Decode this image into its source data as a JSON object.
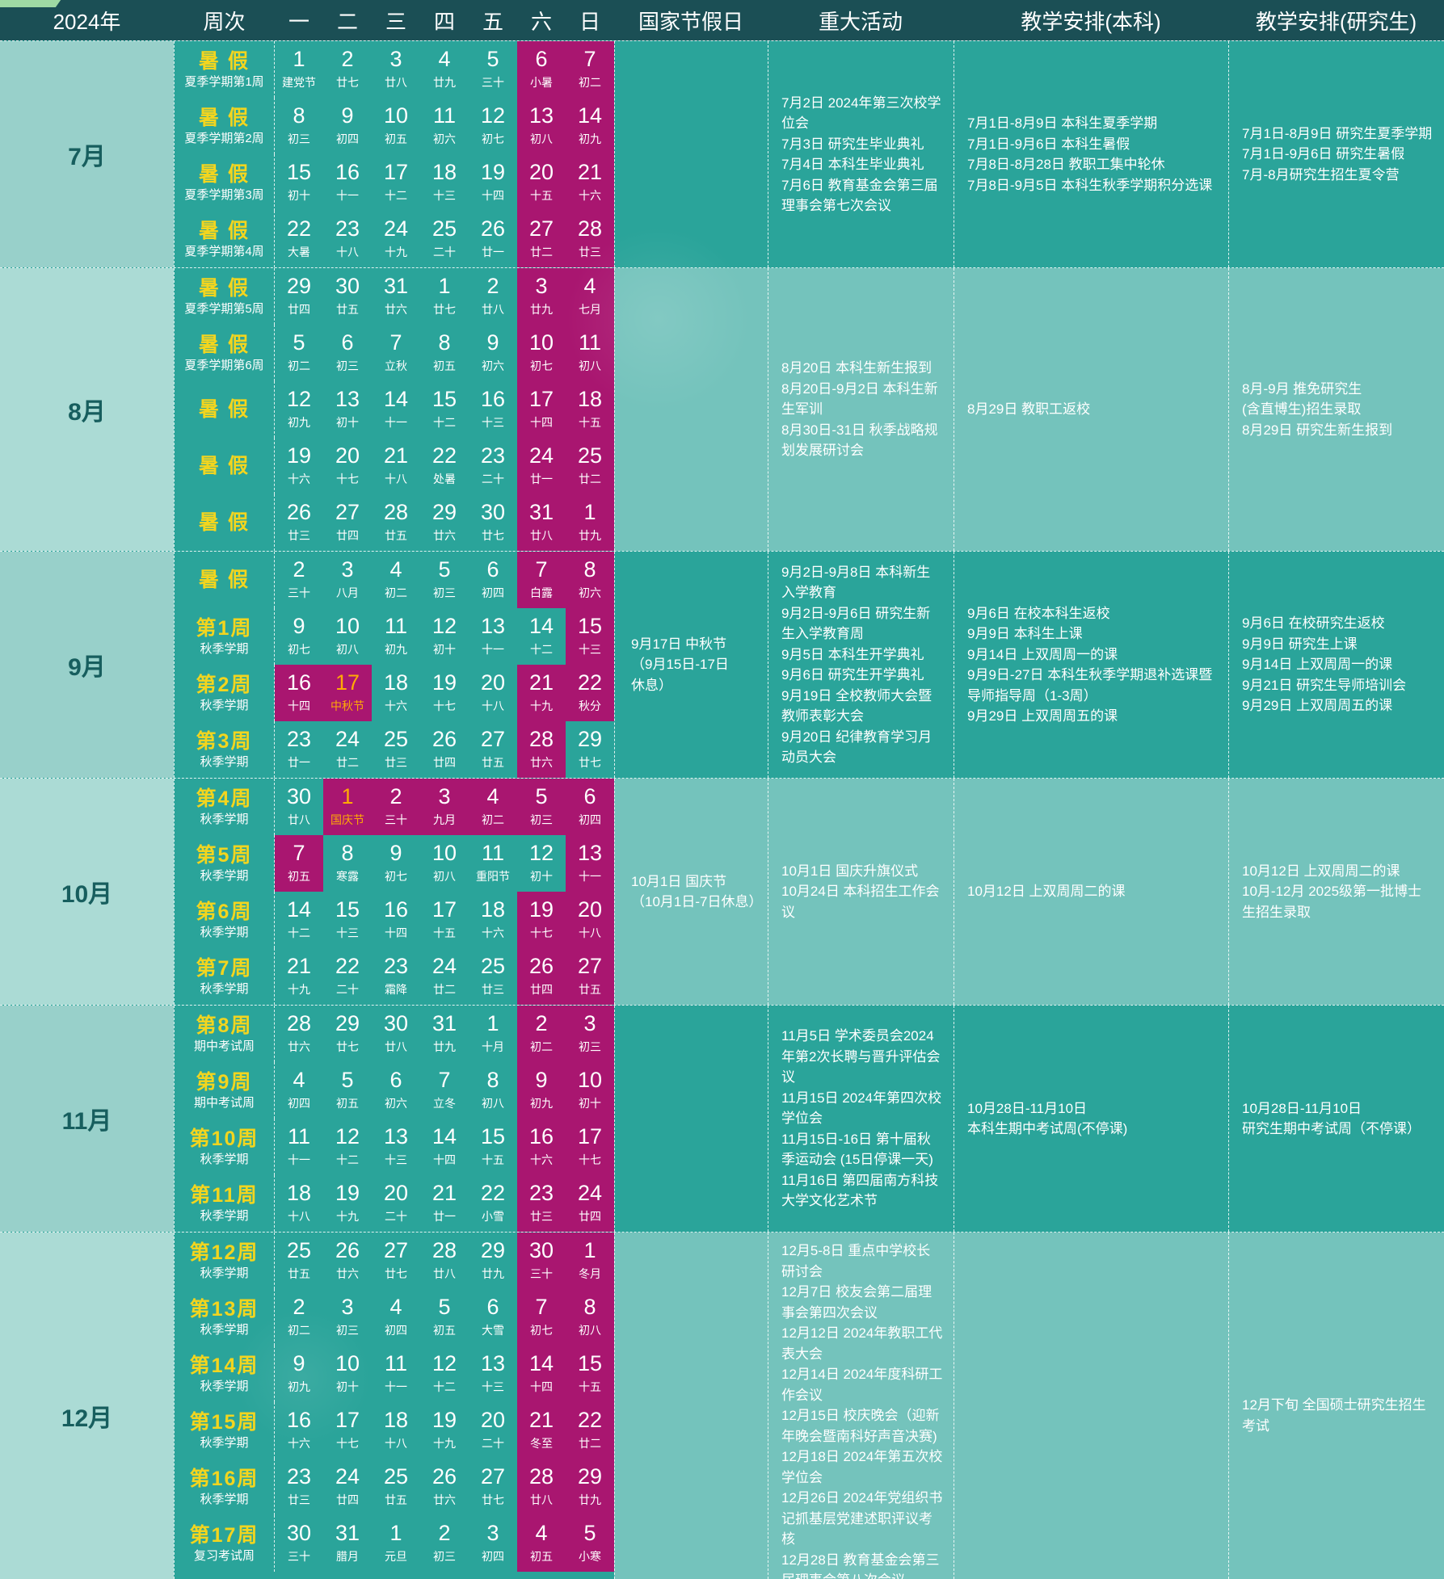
{
  "header": {
    "year": "2024年",
    "week_col": "周次",
    "days": [
      "一",
      "二",
      "三",
      "四",
      "五",
      "六",
      "日"
    ],
    "holiday_col": "国家节假日",
    "events_col": "重大活动",
    "ug_col": "教学安排(本科)",
    "pg_col": "教学安排(研究生)"
  },
  "colors": {
    "teal": "#2aa49a",
    "teal_light": "#74c3bc",
    "magenta": "#a91670",
    "header_bg": "#1b4f55",
    "week_label_yellow": "#f2d51f",
    "festival_orange": "#ffaa05",
    "month_col_dark": "#98d0ca",
    "month_col_light": "#abdbd5"
  },
  "months": [
    {
      "name": "7月",
      "tone": "dark",
      "holiday": "",
      "events": "7月2日  2024年第三次校学位会\n7月3日  研究生毕业典礼\n7月4日  本科生毕业典礼\n7月6日  教育基金会第三届理事会第七次会议",
      "ug": "7月1日-8月9日  本科生夏季学期\n7月1日-9月6日  本科生暑假\n7月8日-8月28日  教职工集中轮休\n7月8日-9月5日  本科生秋季学期积分选课",
      "pg": "7月1日-8月9日 研究生夏季学期\n7月1日-9月6日 研究生暑假\n7月-8月研究生招生夏令营",
      "weeks": [
        {
          "label": "暑 假",
          "sub": "夏季学期第1周",
          "days": [
            [
              "1",
              "建党节"
            ],
            [
              "2",
              "廿七"
            ],
            [
              "3",
              "廿八"
            ],
            [
              "4",
              "廿九"
            ],
            [
              "5",
              "三十"
            ],
            [
              "6",
              "小暑"
            ],
            [
              "7",
              "初二"
            ]
          ]
        },
        {
          "label": "暑 假",
          "sub": "夏季学期第2周",
          "days": [
            [
              "8",
              "初三"
            ],
            [
              "9",
              "初四"
            ],
            [
              "10",
              "初五"
            ],
            [
              "11",
              "初六"
            ],
            [
              "12",
              "初七"
            ],
            [
              "13",
              "初八"
            ],
            [
              "14",
              "初九"
            ]
          ]
        },
        {
          "label": "暑 假",
          "sub": "夏季学期第3周",
          "days": [
            [
              "15",
              "初十"
            ],
            [
              "16",
              "十一"
            ],
            [
              "17",
              "十二"
            ],
            [
              "18",
              "十三"
            ],
            [
              "19",
              "十四"
            ],
            [
              "20",
              "十五"
            ],
            [
              "21",
              "十六"
            ]
          ]
        },
        {
          "label": "暑 假",
          "sub": "夏季学期第4周",
          "days": [
            [
              "22",
              "大暑"
            ],
            [
              "23",
              "十八"
            ],
            [
              "24",
              "十九"
            ],
            [
              "25",
              "二十"
            ],
            [
              "26",
              "廿一"
            ],
            [
              "27",
              "廿二"
            ],
            [
              "28",
              "廿三"
            ]
          ]
        }
      ]
    },
    {
      "name": "8月",
      "tone": "light",
      "holiday": "",
      "events": "8月20日  本科生新生报到\n8月20日-9月2日  本科生新生军训\n8月30日-31日  秋季战略规划发展研讨会",
      "ug": "8月29日  教职工返校",
      "pg": "8月-9月  推免研究生\n(含直博生)招生录取\n8月29日  研究生新生报到",
      "weeks": [
        {
          "label": "暑 假",
          "sub": "夏季学期第5周",
          "days": [
            [
              "29",
              "廿四"
            ],
            [
              "30",
              "廿五"
            ],
            [
              "31",
              "廿六"
            ],
            [
              "1",
              "廿七"
            ],
            [
              "2",
              "廿八"
            ],
            [
              "3",
              "廿九"
            ],
            [
              "4",
              "七月"
            ]
          ]
        },
        {
          "label": "暑 假",
          "sub": "夏季学期第6周",
          "days": [
            [
              "5",
              "初二"
            ],
            [
              "6",
              "初三"
            ],
            [
              "7",
              "立秋"
            ],
            [
              "8",
              "初五"
            ],
            [
              "9",
              "初六"
            ],
            [
              "10",
              "初七"
            ],
            [
              "11",
              "初八"
            ]
          ]
        },
        {
          "label": "暑 假",
          "sub": "",
          "days": [
            [
              "12",
              "初九"
            ],
            [
              "13",
              "初十"
            ],
            [
              "14",
              "十一"
            ],
            [
              "15",
              "十二"
            ],
            [
              "16",
              "十三"
            ],
            [
              "17",
              "十四"
            ],
            [
              "18",
              "十五"
            ]
          ]
        },
        {
          "label": "暑 假",
          "sub": "",
          "days": [
            [
              "19",
              "十六"
            ],
            [
              "20",
              "十七"
            ],
            [
              "21",
              "十八"
            ],
            [
              "22",
              "处暑"
            ],
            [
              "23",
              "二十"
            ],
            [
              "24",
              "廿一"
            ],
            [
              "25",
              "廿二"
            ]
          ]
        },
        {
          "label": "暑 假",
          "sub": "",
          "days": [
            [
              "26",
              "廿三"
            ],
            [
              "27",
              "廿四"
            ],
            [
              "28",
              "廿五"
            ],
            [
              "29",
              "廿六"
            ],
            [
              "30",
              "廿七"
            ],
            [
              "31",
              "廿八"
            ],
            [
              "1",
              "廿九"
            ]
          ]
        }
      ]
    },
    {
      "name": "9月",
      "tone": "dark",
      "holiday": "9月17日  中秋节\n（9月15日-17日\n休息）",
      "events": "9月2日-9月8日  本科新生入学教育\n9月2日-9月6日  研究生新生入学教育周\n9月5日  本科生开学典礼\n9月6日  研究生开学典礼\n9月19日  全校教师大会暨教师表彰大会\n9月20日  纪律教育学习月动员大会",
      "ug": "9月6日  在校本科生返校\n9月9日  本科生上课\n9月14日  上双周周一的课\n9月9日-27日  本科生秋季学期退补选课暨导师指导周（1-3周）\n9月29日 上双周周五的课",
      "pg": "9月6日  在校研究生返校\n9月9日  研究生上课\n9月14日  上双周周一的课\n9月21日  研究生导师培训会\n9月29日 上双周周五的课",
      "weeks": [
        {
          "label": "暑 假",
          "sub": "",
          "days": [
            [
              "2",
              "三十"
            ],
            [
              "3",
              "八月"
            ],
            [
              "4",
              "初二"
            ],
            [
              "5",
              "初三"
            ],
            [
              "6",
              "初四"
            ],
            [
              "7",
              "白露"
            ],
            [
              "8",
              "初六"
            ]
          ]
        },
        {
          "label": "第1周",
          "sub": "秋季学期",
          "days": [
            [
              "9",
              "初七"
            ],
            [
              "10",
              "初八"
            ],
            [
              "11",
              "初九"
            ],
            [
              "12",
              "初十"
            ],
            [
              "13",
              "十一"
            ],
            [
              "14",
              "十二",
              "w"
            ],
            [
              "15",
              "十三"
            ]
          ]
        },
        {
          "label": "第2周",
          "sub": "秋季学期",
          "days": [
            [
              "16",
              "十四",
              "h"
            ],
            [
              "17",
              "中秋节",
              "ho"
            ],
            [
              "18",
              "十六"
            ],
            [
              "19",
              "十七"
            ],
            [
              "20",
              "十八"
            ],
            [
              "21",
              "十九"
            ],
            [
              "22",
              "秋分"
            ]
          ]
        },
        {
          "label": "第3周",
          "sub": "秋季学期",
          "days": [
            [
              "23",
              "廿一"
            ],
            [
              "24",
              "廿二"
            ],
            [
              "25",
              "廿三"
            ],
            [
              "26",
              "廿四"
            ],
            [
              "27",
              "廿五"
            ],
            [
              "28",
              "廿六"
            ],
            [
              "29",
              "廿七",
              "w"
            ]
          ]
        }
      ]
    },
    {
      "name": "10月",
      "tone": "light",
      "holiday": "10月1日  国庆节\n（10月1日-7日休息）",
      "events": "10月1日  国庆升旗仪式\n10月24日  本科招生工作会议",
      "ug": "10月12日  上双周周二的课",
      "pg": "10月12日  上双周周二的课\n10月-12月  2025级第一批博士生招生录取",
      "weeks": [
        {
          "label": "第4周",
          "sub": "秋季学期",
          "days": [
            [
              "30",
              "廿八"
            ],
            [
              "1",
              "国庆节",
              "ho"
            ],
            [
              "2",
              "三十",
              "h"
            ],
            [
              "3",
              "九月",
              "h"
            ],
            [
              "4",
              "初二",
              "h"
            ],
            [
              "5",
              "初三"
            ],
            [
              "6",
              "初四"
            ]
          ]
        },
        {
          "label": "第5周",
          "sub": "秋季学期",
          "days": [
            [
              "7",
              "初五",
              "h"
            ],
            [
              "8",
              "寒露"
            ],
            [
              "9",
              "初七"
            ],
            [
              "10",
              "初八"
            ],
            [
              "11",
              "重阳节"
            ],
            [
              "12",
              "初十",
              "w"
            ],
            [
              "13",
              "十一"
            ]
          ]
        },
        {
          "label": "第6周",
          "sub": "秋季学期",
          "days": [
            [
              "14",
              "十二"
            ],
            [
              "15",
              "十三"
            ],
            [
              "16",
              "十四"
            ],
            [
              "17",
              "十五"
            ],
            [
              "18",
              "十六"
            ],
            [
              "19",
              "十七"
            ],
            [
              "20",
              "十八"
            ]
          ]
        },
        {
          "label": "第7周",
          "sub": "秋季学期",
          "days": [
            [
              "21",
              "十九"
            ],
            [
              "22",
              "二十"
            ],
            [
              "23",
              "霜降"
            ],
            [
              "24",
              "廿二"
            ],
            [
              "25",
              "廿三"
            ],
            [
              "26",
              "廿四"
            ],
            [
              "27",
              "廿五"
            ]
          ]
        }
      ]
    },
    {
      "name": "11月",
      "tone": "dark",
      "holiday": "",
      "events": "11月5日  学术委员会2024年第2次长聘与晋升评估会议\n11月15日  2024年第四次校学位会\n11月15日-16日 第十届秋季运动会 (15日停课一天)\n11月16日  第四届南方科技大学文化艺术节",
      "ug": "10月28日-11月10日\n本科生期中考试周(不停课)",
      "pg": "10月28日-11月10日\n研究生期中考试周（不停课）",
      "weeks": [
        {
          "label": "第8周",
          "sub": "期中考试周",
          "days": [
            [
              "28",
              "廿六"
            ],
            [
              "29",
              "廿七"
            ],
            [
              "30",
              "廿八"
            ],
            [
              "31",
              "廿九"
            ],
            [
              "1",
              "十月"
            ],
            [
              "2",
              "初二"
            ],
            [
              "3",
              "初三"
            ]
          ]
        },
        {
          "label": "第9周",
          "sub": "期中考试周",
          "days": [
            [
              "4",
              "初四"
            ],
            [
              "5",
              "初五"
            ],
            [
              "6",
              "初六"
            ],
            [
              "7",
              "立冬"
            ],
            [
              "8",
              "初八"
            ],
            [
              "9",
              "初九"
            ],
            [
              "10",
              "初十"
            ]
          ]
        },
        {
          "label": "第10周",
          "sub": "秋季学期",
          "days": [
            [
              "11",
              "十一"
            ],
            [
              "12",
              "十二"
            ],
            [
              "13",
              "十三"
            ],
            [
              "14",
              "十四"
            ],
            [
              "15",
              "十五"
            ],
            [
              "16",
              "十六"
            ],
            [
              "17",
              "十七"
            ]
          ]
        },
        {
          "label": "第11周",
          "sub": "秋季学期",
          "days": [
            [
              "18",
              "十八"
            ],
            [
              "19",
              "十九"
            ],
            [
              "20",
              "二十"
            ],
            [
              "21",
              "廿一"
            ],
            [
              "22",
              "小雪"
            ],
            [
              "23",
              "廿三"
            ],
            [
              "24",
              "廿四"
            ]
          ]
        }
      ]
    },
    {
      "name": "12月",
      "tone": "light",
      "holiday": "",
      "events": "12月5-8日  重点中学校长研讨会\n12月7日  校友会第二届理事会第四次会议\n12月12日  2024年教职工代表大会\n12月14日  2024年度科研工作会议\n12月15日  校庆晚会（迎新年晚会暨南科好声音决赛)\n12月18日  2024年第五次校学位会\n12月26日  2024年党组织书记抓基层党建述职评议考核\n12月28日  教育基金会第三届理事会第八次会议",
      "ug": "",
      "pg": "12月下旬  全国硕士研究生招生考试",
      "weeks": [
        {
          "label": "第12周",
          "sub": "秋季学期",
          "days": [
            [
              "25",
              "廿五"
            ],
            [
              "26",
              "廿六"
            ],
            [
              "27",
              "廿七"
            ],
            [
              "28",
              "廿八"
            ],
            [
              "29",
              "廿九"
            ],
            [
              "30",
              "三十"
            ],
            [
              "1",
              "冬月"
            ]
          ]
        },
        {
          "label": "第13周",
          "sub": "秋季学期",
          "days": [
            [
              "2",
              "初二"
            ],
            [
              "3",
              "初三"
            ],
            [
              "4",
              "初四"
            ],
            [
              "5",
              "初五"
            ],
            [
              "6",
              "大雪"
            ],
            [
              "7",
              "初七"
            ],
            [
              "8",
              "初八"
            ]
          ]
        },
        {
          "label": "第14周",
          "sub": "秋季学期",
          "days": [
            [
              "9",
              "初九"
            ],
            [
              "10",
              "初十"
            ],
            [
              "11",
              "十一"
            ],
            [
              "12",
              "十二"
            ],
            [
              "13",
              "十三"
            ],
            [
              "14",
              "十四"
            ],
            [
              "15",
              "十五"
            ]
          ]
        },
        {
          "label": "第15周",
          "sub": "秋季学期",
          "days": [
            [
              "16",
              "十六"
            ],
            [
              "17",
              "十七"
            ],
            [
              "18",
              "十八"
            ],
            [
              "19",
              "十九"
            ],
            [
              "20",
              "二十"
            ],
            [
              "21",
              "冬至"
            ],
            [
              "22",
              "廿二"
            ]
          ]
        },
        {
          "label": "第16周",
          "sub": "秋季学期",
          "days": [
            [
              "23",
              "廿三"
            ],
            [
              "24",
              "廿四"
            ],
            [
              "25",
              "廿五"
            ],
            [
              "26",
              "廿六"
            ],
            [
              "27",
              "廿七"
            ],
            [
              "28",
              "廿八"
            ],
            [
              "29",
              "廿九"
            ]
          ]
        },
        {
          "label": "第17周",
          "sub": "复习考试周",
          "days": [
            [
              "30",
              "三十"
            ],
            [
              "31",
              "腊月"
            ],
            [
              "1",
              "元旦"
            ],
            [
              "2",
              "初三"
            ],
            [
              "3",
              "初四"
            ],
            [
              "4",
              "初五"
            ],
            [
              "5",
              "小寒"
            ]
          ]
        }
      ]
    }
  ]
}
